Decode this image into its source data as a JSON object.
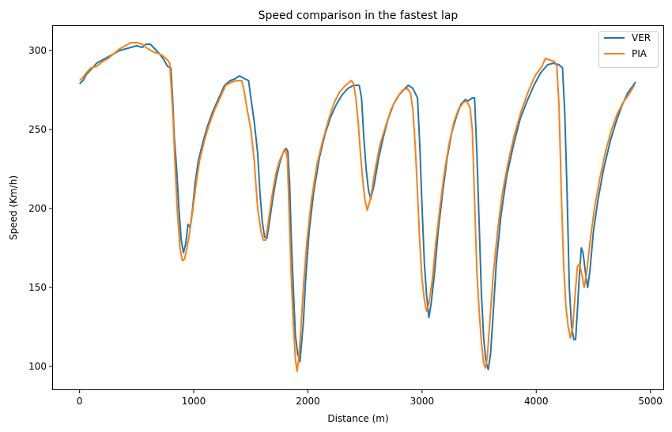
{
  "chart_data": {
    "type": "line",
    "title": "Speed comparison in the fastest lap",
    "xlabel": "Distance (m)",
    "ylabel": "Speed (Km/h)",
    "xlim": [
      -240,
      5120
    ],
    "ylim": [
      85,
      316
    ],
    "xticks": [
      0,
      1000,
      2000,
      3000,
      4000,
      5000
    ],
    "yticks": [
      100,
      150,
      200,
      250,
      300
    ],
    "grid": false,
    "legend_position": "top-right",
    "series": [
      {
        "name": "VER",
        "color": "#1f77b4",
        "points": [
          [
            0,
            279
          ],
          [
            30,
            281
          ],
          [
            60,
            285
          ],
          [
            100,
            288
          ],
          [
            150,
            292
          ],
          [
            200,
            294
          ],
          [
            250,
            296
          ],
          [
            300,
            298
          ],
          [
            350,
            300
          ],
          [
            400,
            301
          ],
          [
            450,
            302
          ],
          [
            500,
            303
          ],
          [
            550,
            302
          ],
          [
            580,
            304
          ],
          [
            620,
            304
          ],
          [
            660,
            301
          ],
          [
            700,
            298
          ],
          [
            740,
            294
          ],
          [
            770,
            290
          ],
          [
            800,
            289
          ],
          [
            815,
            270
          ],
          [
            830,
            245
          ],
          [
            850,
            225
          ],
          [
            870,
            200
          ],
          [
            890,
            180
          ],
          [
            910,
            172
          ],
          [
            930,
            178
          ],
          [
            950,
            190
          ],
          [
            970,
            188
          ],
          [
            990,
            200
          ],
          [
            1010,
            215
          ],
          [
            1040,
            230
          ],
          [
            1080,
            242
          ],
          [
            1120,
            252
          ],
          [
            1170,
            262
          ],
          [
            1220,
            270
          ],
          [
            1270,
            278
          ],
          [
            1320,
            281
          ],
          [
            1360,
            282
          ],
          [
            1400,
            284
          ],
          [
            1450,
            282
          ],
          [
            1480,
            281
          ],
          [
            1500,
            270
          ],
          [
            1530,
            255
          ],
          [
            1560,
            235
          ],
          [
            1580,
            210
          ],
          [
            1600,
            192
          ],
          [
            1620,
            182
          ],
          [
            1640,
            181
          ],
          [
            1660,
            190
          ],
          [
            1690,
            205
          ],
          [
            1720,
            218
          ],
          [
            1750,
            228
          ],
          [
            1780,
            235
          ],
          [
            1810,
            238
          ],
          [
            1825,
            236
          ],
          [
            1840,
            215
          ],
          [
            1855,
            180
          ],
          [
            1875,
            145
          ],
          [
            1890,
            120
          ],
          [
            1910,
            108
          ],
          [
            1930,
            103
          ],
          [
            1945,
            115
          ],
          [
            1960,
            128
          ],
          [
            1980,
            155
          ],
          [
            2010,
            185
          ],
          [
            2050,
            210
          ],
          [
            2100,
            232
          ],
          [
            2150,
            247
          ],
          [
            2200,
            258
          ],
          [
            2250,
            266
          ],
          [
            2300,
            272
          ],
          [
            2350,
            276
          ],
          [
            2400,
            278
          ],
          [
            2450,
            278
          ],
          [
            2470,
            270
          ],
          [
            2490,
            245
          ],
          [
            2510,
            225
          ],
          [
            2530,
            212
          ],
          [
            2550,
            206
          ],
          [
            2580,
            215
          ],
          [
            2620,
            232
          ],
          [
            2660,
            245
          ],
          [
            2700,
            256
          ],
          [
            2750,
            266
          ],
          [
            2800,
            272
          ],
          [
            2850,
            276
          ],
          [
            2880,
            278
          ],
          [
            2920,
            276
          ],
          [
            2960,
            270
          ],
          [
            2980,
            240
          ],
          [
            3000,
            200
          ],
          [
            3020,
            165
          ],
          [
            3040,
            145
          ],
          [
            3060,
            131
          ],
          [
            3080,
            140
          ],
          [
            3110,
            160
          ],
          [
            3140,
            185
          ],
          [
            3180,
            210
          ],
          [
            3220,
            232
          ],
          [
            3260,
            248
          ],
          [
            3300,
            258
          ],
          [
            3340,
            266
          ],
          [
            3380,
            269
          ],
          [
            3400,
            268
          ],
          [
            3440,
            270
          ],
          [
            3460,
            270
          ],
          [
            3480,
            235
          ],
          [
            3500,
            190
          ],
          [
            3520,
            145
          ],
          [
            3540,
            118
          ],
          [
            3560,
            103
          ],
          [
            3580,
            98
          ],
          [
            3600,
            108
          ],
          [
            3620,
            130
          ],
          [
            3650,
            165
          ],
          [
            3690,
            195
          ],
          [
            3740,
            220
          ],
          [
            3800,
            240
          ],
          [
            3860,
            257
          ],
          [
            3920,
            268
          ],
          [
            3980,
            278
          ],
          [
            4040,
            286
          ],
          [
            4100,
            291
          ],
          [
            4150,
            292
          ],
          [
            4200,
            291
          ],
          [
            4230,
            289
          ],
          [
            4250,
            260
          ],
          [
            4270,
            210
          ],
          [
            4290,
            150
          ],
          [
            4310,
            125
          ],
          [
            4330,
            117
          ],
          [
            4345,
            117
          ],
          [
            4360,
            135
          ],
          [
            4380,
            160
          ],
          [
            4395,
            175
          ],
          [
            4410,
            172
          ],
          [
            4430,
            160
          ],
          [
            4450,
            150
          ],
          [
            4470,
            160
          ],
          [
            4500,
            185
          ],
          [
            4540,
            205
          ],
          [
            4590,
            225
          ],
          [
            4650,
            243
          ],
          [
            4700,
            255
          ],
          [
            4750,
            265
          ],
          [
            4800,
            273
          ],
          [
            4850,
            278
          ],
          [
            4870,
            280
          ]
        ]
      },
      {
        "name": "PIA",
        "color": "#ff7f0e",
        "points": [
          [
            0,
            281
          ],
          [
            30,
            283
          ],
          [
            60,
            286
          ],
          [
            100,
            289
          ],
          [
            150,
            290
          ],
          [
            200,
            293
          ],
          [
            250,
            295
          ],
          [
            300,
            298
          ],
          [
            350,
            301
          ],
          [
            400,
            303
          ],
          [
            450,
            305
          ],
          [
            500,
            305
          ],
          [
            550,
            304
          ],
          [
            600,
            301
          ],
          [
            650,
            299
          ],
          [
            700,
            298
          ],
          [
            740,
            296
          ],
          [
            770,
            294
          ],
          [
            790,
            292
          ],
          [
            805,
            275
          ],
          [
            820,
            255
          ],
          [
            835,
            230
          ],
          [
            855,
            200
          ],
          [
            880,
            175
          ],
          [
            900,
            167
          ],
          [
            920,
            168
          ],
          [
            940,
            175
          ],
          [
            960,
            183
          ],
          [
            990,
            198
          ],
          [
            1020,
            215
          ],
          [
            1050,
            230
          ],
          [
            1090,
            242
          ],
          [
            1130,
            252
          ],
          [
            1180,
            262
          ],
          [
            1230,
            270
          ],
          [
            1280,
            278
          ],
          [
            1330,
            280
          ],
          [
            1380,
            281
          ],
          [
            1420,
            281
          ],
          [
            1440,
            275
          ],
          [
            1470,
            262
          ],
          [
            1500,
            250
          ],
          [
            1530,
            230
          ],
          [
            1560,
            200
          ],
          [
            1590,
            185
          ],
          [
            1610,
            180
          ],
          [
            1630,
            180
          ],
          [
            1660,
            195
          ],
          [
            1690,
            210
          ],
          [
            1720,
            222
          ],
          [
            1750,
            230
          ],
          [
            1780,
            235
          ],
          [
            1800,
            238
          ],
          [
            1820,
            232
          ],
          [
            1835,
            200
          ],
          [
            1850,
            165
          ],
          [
            1870,
            130
          ],
          [
            1890,
            105
          ],
          [
            1905,
            97
          ],
          [
            1920,
            105
          ],
          [
            1940,
            125
          ],
          [
            1960,
            150
          ],
          [
            1990,
            178
          ],
          [
            2030,
            205
          ],
          [
            2080,
            228
          ],
          [
            2130,
            243
          ],
          [
            2180,
            256
          ],
          [
            2230,
            267
          ],
          [
            2280,
            274
          ],
          [
            2330,
            278
          ],
          [
            2380,
            281
          ],
          [
            2400,
            279
          ],
          [
            2420,
            270
          ],
          [
            2440,
            255
          ],
          [
            2460,
            235
          ],
          [
            2480,
            218
          ],
          [
            2500,
            205
          ],
          [
            2520,
            199
          ],
          [
            2550,
            207
          ],
          [
            2590,
            225
          ],
          [
            2630,
            240
          ],
          [
            2680,
            252
          ],
          [
            2730,
            263
          ],
          [
            2780,
            270
          ],
          [
            2830,
            275
          ],
          [
            2870,
            276
          ],
          [
            2900,
            273
          ],
          [
            2920,
            262
          ],
          [
            2940,
            240
          ],
          [
            2960,
            210
          ],
          [
            2980,
            178
          ],
          [
            3000,
            155
          ],
          [
            3020,
            142
          ],
          [
            3040,
            135
          ],
          [
            3060,
            140
          ],
          [
            3090,
            155
          ],
          [
            3120,
            178
          ],
          [
            3160,
            203
          ],
          [
            3200,
            225
          ],
          [
            3240,
            242
          ],
          [
            3280,
            255
          ],
          [
            3320,
            263
          ],
          [
            3360,
            267
          ],
          [
            3390,
            268
          ],
          [
            3420,
            264
          ],
          [
            3440,
            250
          ],
          [
            3460,
            205
          ],
          [
            3480,
            160
          ],
          [
            3500,
            135
          ],
          [
            3520,
            115
          ],
          [
            3540,
            102
          ],
          [
            3555,
            99
          ],
          [
            3570,
            105
          ],
          [
            3590,
            125
          ],
          [
            3620,
            155
          ],
          [
            3660,
            185
          ],
          [
            3700,
            208
          ],
          [
            3750,
            228
          ],
          [
            3810,
            247
          ],
          [
            3870,
            262
          ],
          [
            3930,
            274
          ],
          [
            3990,
            284
          ],
          [
            4050,
            290
          ],
          [
            4080,
            295
          ],
          [
            4120,
            294
          ],
          [
            4160,
            293
          ],
          [
            4180,
            290
          ],
          [
            4200,
            265
          ],
          [
            4220,
            210
          ],
          [
            4240,
            165
          ],
          [
            4260,
            138
          ],
          [
            4280,
            125
          ],
          [
            4300,
            118
          ],
          [
            4320,
            125
          ],
          [
            4340,
            145
          ],
          [
            4360,
            163
          ],
          [
            4380,
            165
          ],
          [
            4400,
            158
          ],
          [
            4420,
            150
          ],
          [
            4440,
            158
          ],
          [
            4470,
            178
          ],
          [
            4510,
            200
          ],
          [
            4560,
            220
          ],
          [
            4610,
            237
          ],
          [
            4660,
            250
          ],
          [
            4710,
            260
          ],
          [
            4760,
            267
          ],
          [
            4810,
            272
          ],
          [
            4860,
            278
          ]
        ]
      }
    ]
  }
}
